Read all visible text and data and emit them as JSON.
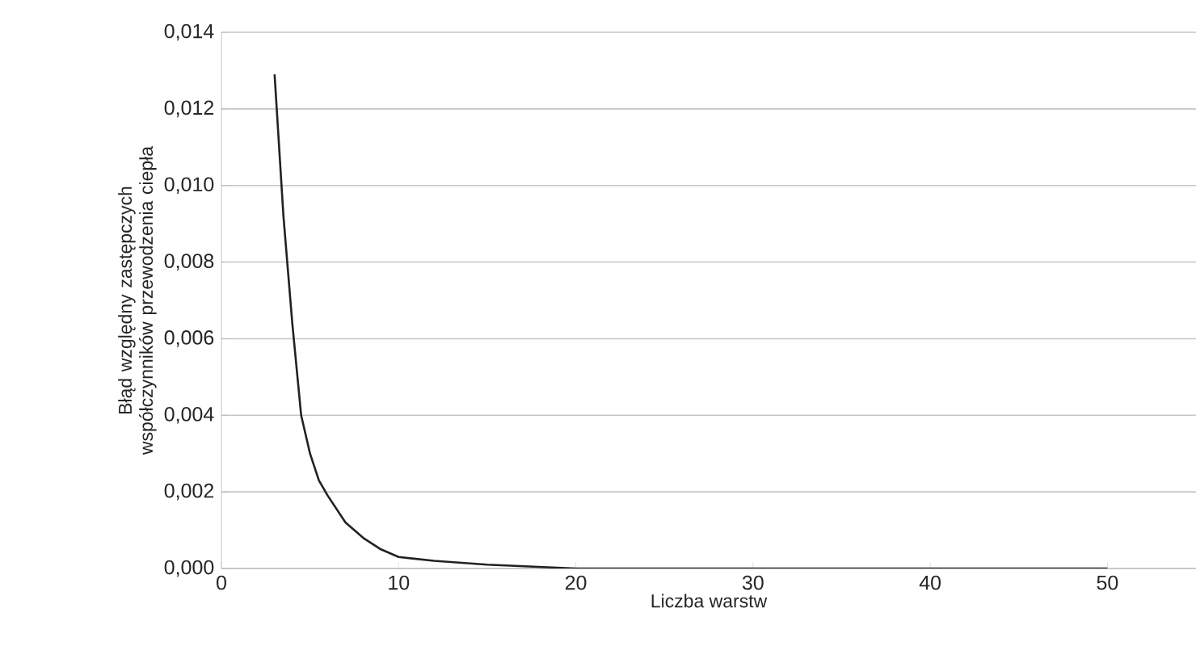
{
  "chart_data": {
    "type": "line",
    "xlabel": "Liczba warstw",
    "ylabel": "Błąd względny zastępczych współczynników  przewodzenia ciepła",
    "series": [
      {
        "color": "#222222",
        "x": [
          3,
          3.5,
          4,
          4.5,
          5,
          5.5,
          6,
          7,
          8,
          9,
          10,
          12,
          15,
          20,
          30,
          40,
          50
        ],
        "values": [
          0.0129,
          0.0092,
          0.0064,
          0.004,
          0.003,
          0.0023,
          0.0019,
          0.0012,
          0.0008,
          0.0005,
          0.0003,
          0.0002,
          0.0001,
          0,
          0,
          0,
          0
        ]
      }
    ],
    "xlim": [
      0,
      55
    ],
    "xticks": [
      0,
      10,
      20,
      30,
      40,
      50
    ],
    "ylim": [
      0,
      0.014
    ],
    "yticks": [
      {
        "value": 0,
        "label": "0,000"
      },
      {
        "value": 0.002,
        "label": "0,002"
      },
      {
        "value": 0.004,
        "label": "0,004"
      },
      {
        "value": 0.006,
        "label": "0,006"
      },
      {
        "value": 0.008,
        "label": "0,008"
      },
      {
        "value": 0.01,
        "label": "0,010"
      },
      {
        "value": 0.012,
        "label": "0,012"
      },
      {
        "value": 0.014,
        "label": "0,014"
      }
    ],
    "grid": "y",
    "marker": "none",
    "line_style": "solid"
  }
}
